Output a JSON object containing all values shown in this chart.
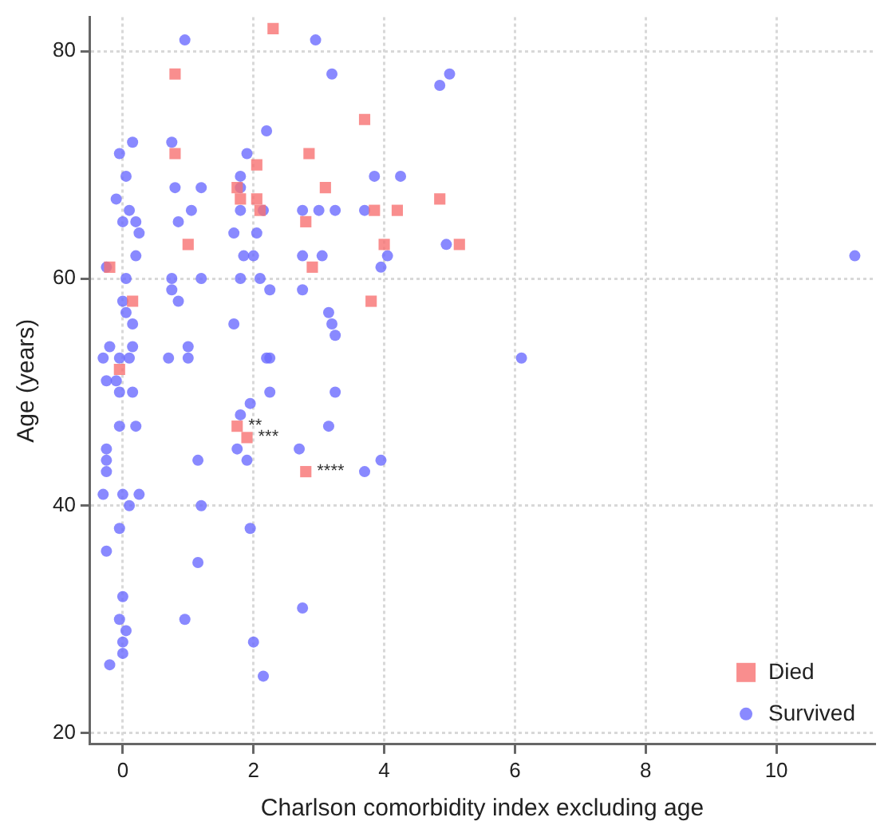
{
  "chart_data": {
    "type": "scatter",
    "xlabel": "Charlson comorbidity index excluding age",
    "ylabel": "Age (years)",
    "xlim": [
      -0.5,
      11.5
    ],
    "ylim": [
      19,
      83
    ],
    "xticks": [
      0,
      2,
      4,
      6,
      8,
      10
    ],
    "yticks": [
      20,
      40,
      60,
      80
    ],
    "grid": true,
    "legend": "bottom right",
    "series": [
      {
        "name": "Died",
        "color": "#f77272",
        "marker": "square",
        "x": [
          0.8,
          2.3,
          3.7,
          0.8,
          2.85,
          2.05,
          3.1,
          1.75,
          1.8,
          2.05,
          2.1,
          3.85,
          4.85,
          4.2,
          5.15,
          4,
          2.8,
          2.9,
          1,
          -0.2,
          0.15,
          -0.05,
          3.8,
          1.75,
          1.9,
          2.8
        ],
        "values": [
          78,
          82,
          74,
          71,
          71,
          70,
          68,
          68,
          67,
          67,
          66,
          66,
          67,
          66,
          63,
          63,
          65,
          61,
          63,
          61,
          58,
          52,
          58,
          47,
          46,
          43
        ]
      },
      {
        "name": "Survived",
        "color": "#6b6bff",
        "marker": "circle",
        "x": [
          0.95,
          2.95,
          3.2,
          2.2,
          0.15,
          0.75,
          -0.05,
          1.9,
          0.05,
          1.8,
          3.85,
          4.25,
          0.8,
          1.2,
          1.8,
          -0.1,
          0.1,
          1.05,
          1.8,
          2.15,
          2.75,
          3,
          3.25,
          3.7,
          0,
          0.2,
          0.85,
          0.25,
          1.7,
          2.05,
          0.2,
          1.85,
          2,
          2.75,
          3.05,
          4.05,
          -0.25,
          3.95,
          0.05,
          0.75,
          1.2,
          1.8,
          2.1,
          2.75,
          2.25,
          0.75,
          0.85,
          0,
          0.05,
          0.15,
          1.7,
          3.15,
          3.2,
          3.25,
          -0.2,
          0.15,
          1,
          -0.3,
          -0.05,
          0.1,
          0.7,
          1,
          2.2,
          2.25,
          6.1,
          -0.25,
          -0.1,
          -0.05,
          0.15,
          2.25,
          3.25,
          1.95,
          1.8,
          -0.05,
          0.2,
          3.15,
          -0.25,
          2.7,
          1.75,
          -0.25,
          1.15,
          1.9,
          3.95,
          -0.25,
          3.7,
          -0.3,
          0,
          0.25,
          0.1,
          1.2,
          -0.05,
          1.95,
          -0.25,
          1.15,
          0,
          2.75,
          -0.05,
          0.95,
          0.05,
          0,
          2,
          0,
          -0.2,
          2.15,
          11.2,
          5,
          4.85,
          4.95
        ],
        "values": [
          81,
          81,
          78,
          73,
          72,
          72,
          71,
          71,
          69,
          69,
          69,
          69,
          68,
          68,
          68,
          67,
          66,
          66,
          66,
          66,
          66,
          66,
          66,
          66,
          65,
          65,
          65,
          64,
          64,
          64,
          62,
          62,
          62,
          62,
          62,
          62,
          61,
          61,
          60,
          60,
          60,
          60,
          60,
          59,
          59,
          59,
          58,
          58,
          57,
          56,
          56,
          57,
          56,
          55,
          54,
          54,
          54,
          53,
          53,
          53,
          53,
          53,
          53,
          53,
          53,
          51,
          51,
          50,
          50,
          50,
          50,
          49,
          48,
          47,
          47,
          47,
          45,
          45,
          45,
          44,
          44,
          44,
          44,
          43,
          43,
          41,
          41,
          41,
          40,
          40,
          38,
          38,
          36,
          35,
          32,
          31,
          30,
          30,
          29,
          28,
          28,
          27,
          26,
          25,
          62,
          78,
          77,
          63
        ]
      }
    ],
    "annotations": [
      {
        "text": "**",
        "x": 1.75,
        "y": 47
      },
      {
        "text": "***",
        "x": 1.9,
        "y": 46
      },
      {
        "text": "****",
        "x": 2.8,
        "y": 43
      }
    ]
  }
}
